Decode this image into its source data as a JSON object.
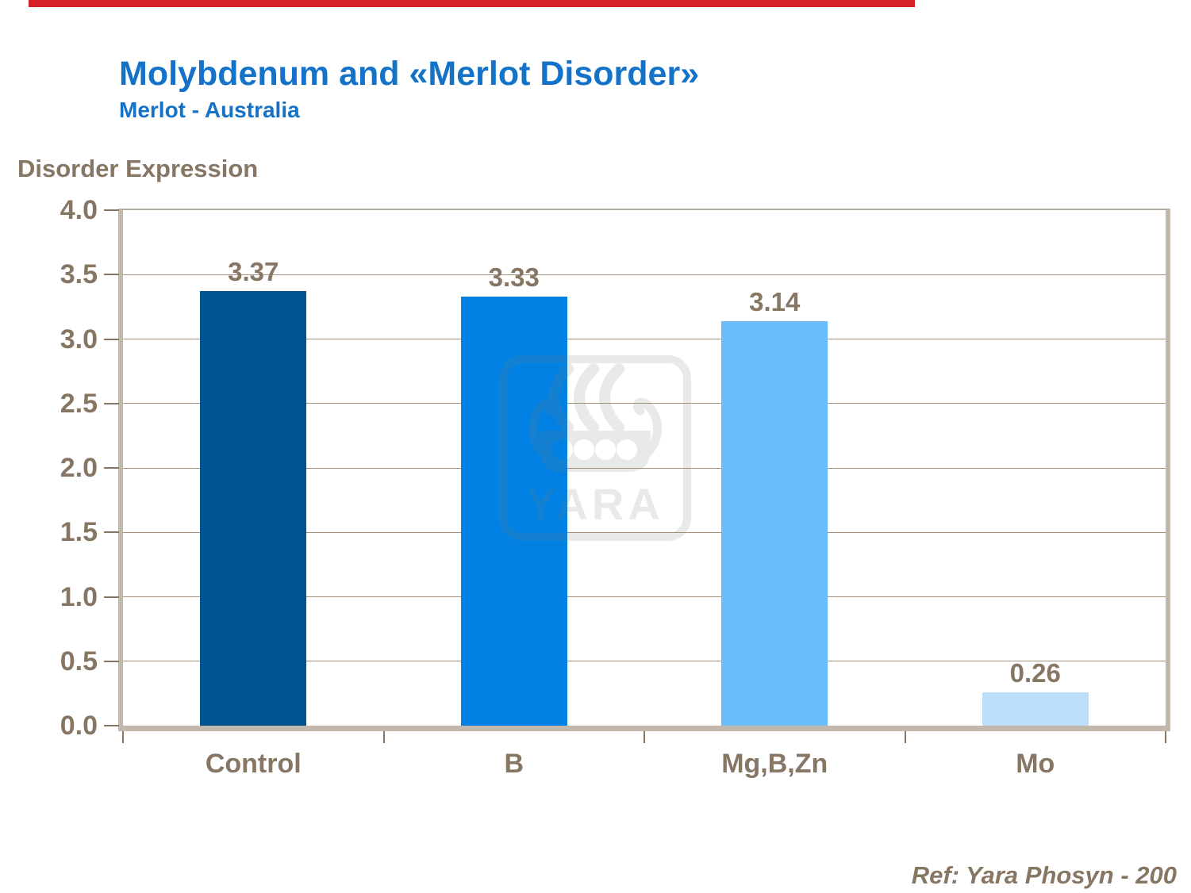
{
  "page": {
    "top_bar": {
      "color": "#D42127"
    },
    "title": "Molybdenum and «Merlot Disorder»",
    "subtitle": "Merlot - Australia",
    "y_axis_title": "Disorder Expression",
    "reference": "Ref: Yara Phosyn - 200",
    "watermark_text": "YARA",
    "colors": {
      "title_blue": "#1473C8",
      "text_brown": "#877663",
      "frame_tan": "#C2B7AB",
      "frame_top": "#B3A99C",
      "gridline": "#A4927E",
      "watermark_gray": "#7d7d7d"
    }
  },
  "chart_data": {
    "type": "bar",
    "title": "Disorder Expression",
    "categories": [
      "Control",
      "B",
      "Mg,B,Zn",
      "Mo"
    ],
    "values": [
      3.37,
      3.33,
      3.14,
      0.26
    ],
    "data_labels": [
      "3.37",
      "3.33",
      "3.14",
      "0.26"
    ],
    "bar_colors": [
      "#005591",
      "#0081E3",
      "#69BDFA",
      "#BEDFFB"
    ],
    "xlabel": "",
    "ylabel": "Disorder Expression",
    "ylim": [
      0,
      4
    ],
    "yticks": [
      4.0,
      3.5,
      3.0,
      2.5,
      2.0,
      1.5,
      1.0,
      0.5,
      0.0
    ],
    "ytick_labels": [
      "4.0",
      "3.5",
      "3.0",
      "2.5",
      "2.0",
      "1.5",
      "1.0",
      "0.5",
      "0.0"
    ],
    "grid": true,
    "legend_position": "none",
    "watermark": "YARA",
    "annotations": [
      "Ref: Yara Phosyn - 200"
    ]
  }
}
